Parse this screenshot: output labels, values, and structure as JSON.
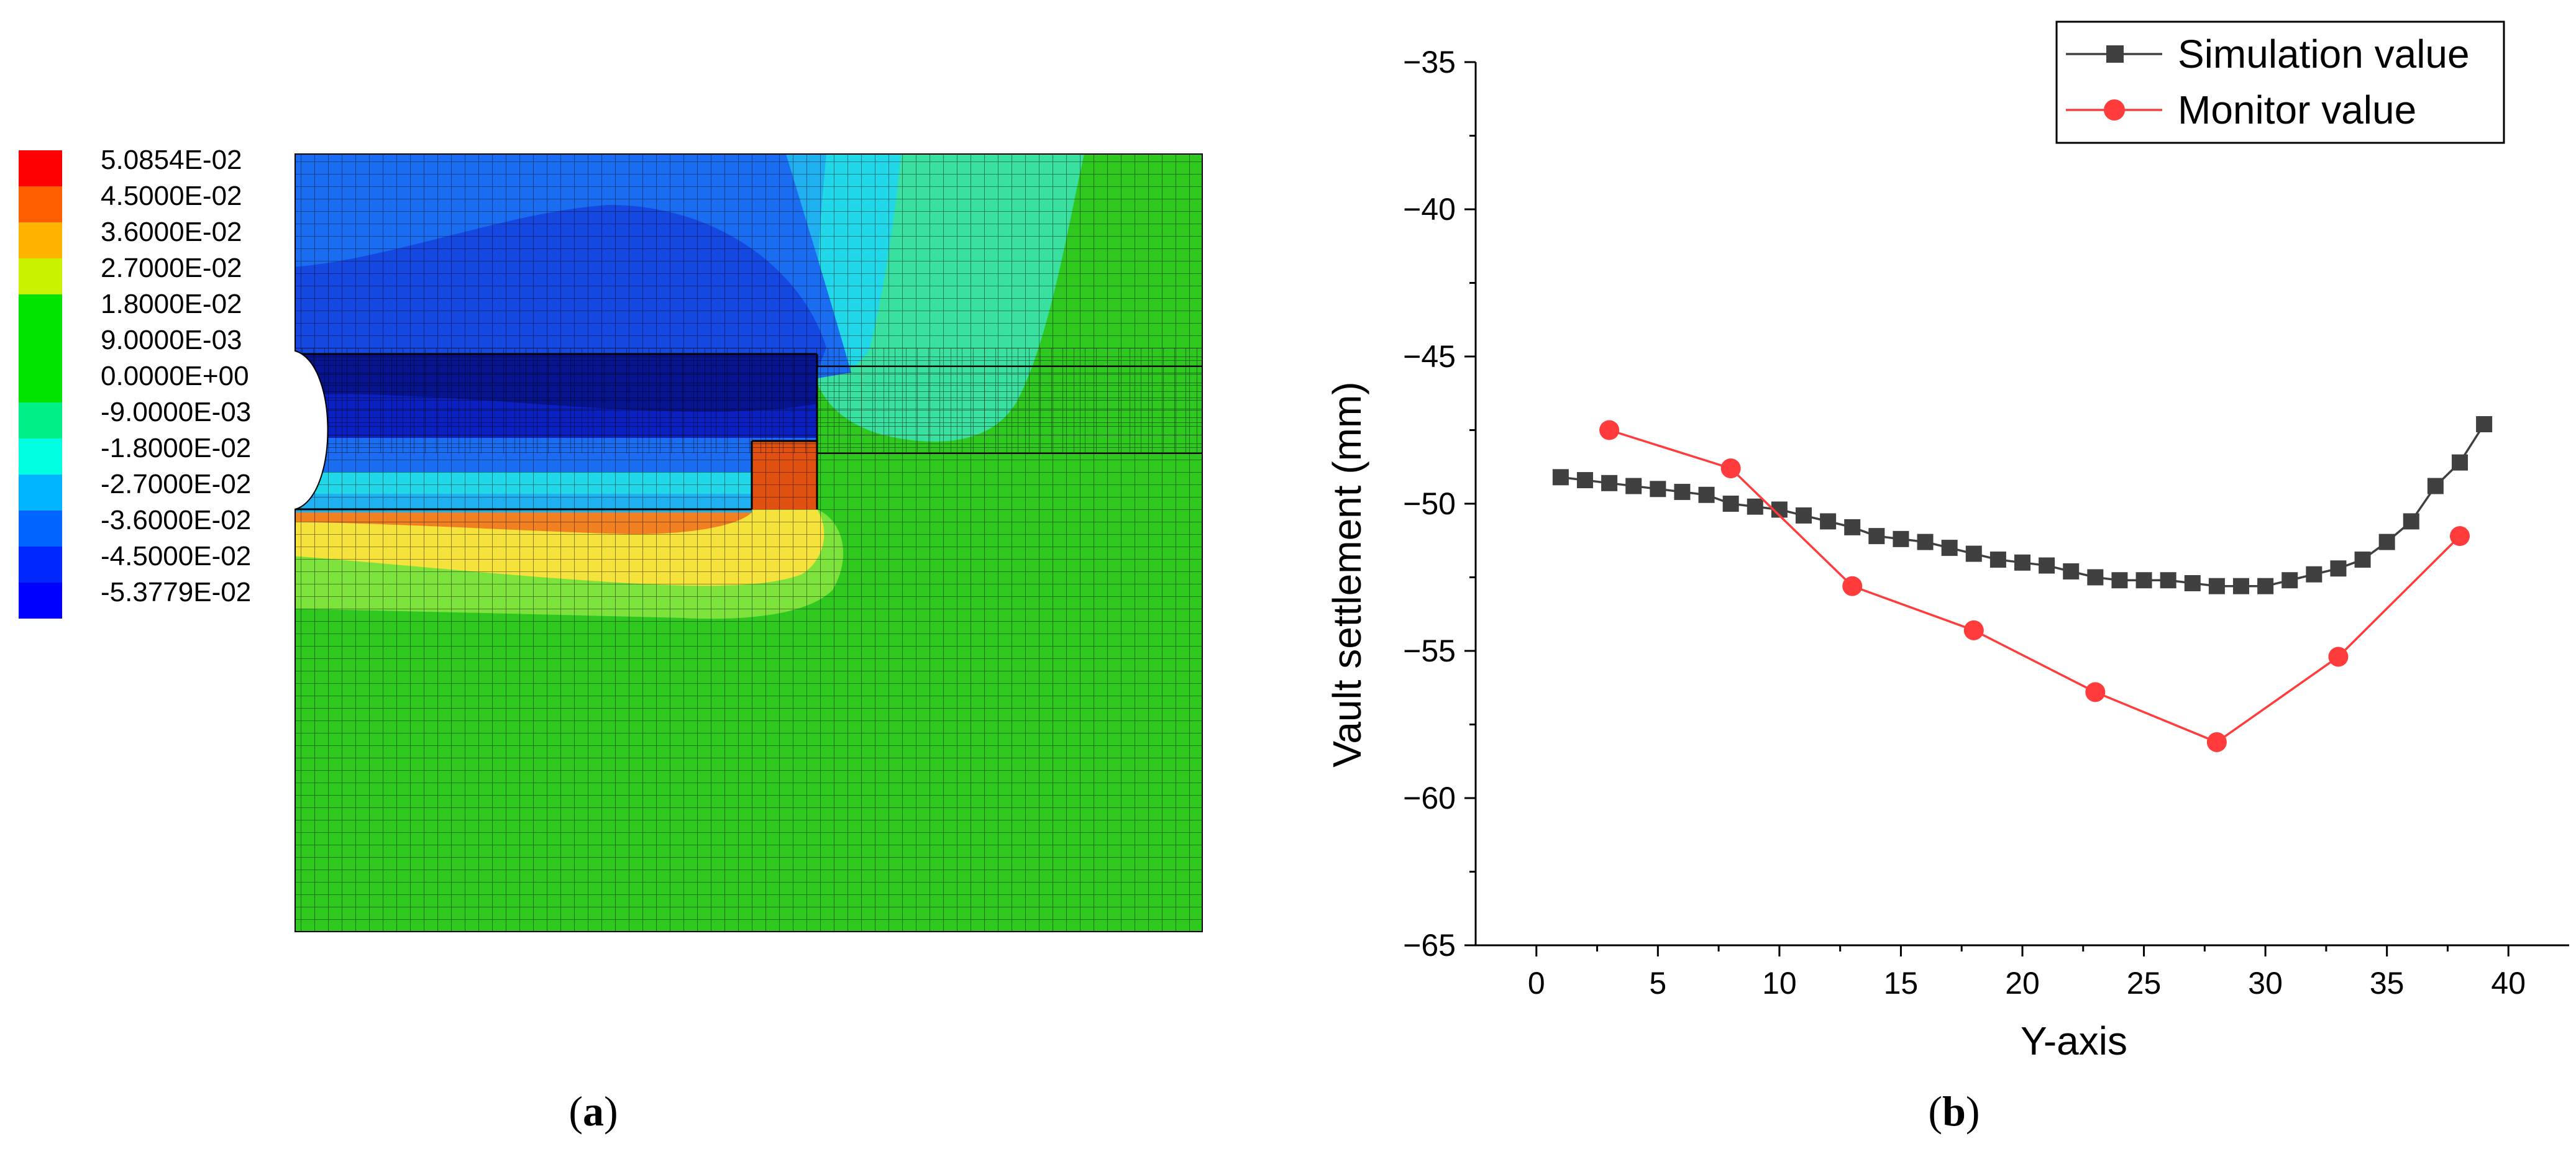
{
  "panel_a": {
    "label": "(a)",
    "legend": {
      "values": [
        "5.0854E-02",
        "4.5000E-02",
        "3.6000E-02",
        "2.7000E-02",
        "1.8000E-02",
        "9.0000E-03",
        "0.0000E+00",
        "-9.0000E-03",
        "-1.8000E-02",
        "-2.7000E-02",
        "-3.6000E-02",
        "-4.5000E-02",
        "-5.3779E-02"
      ],
      "colors": [
        "#ff0000",
        "#ff5f00",
        "#ffb300",
        "#c8f200",
        "#00e400",
        "#00e400",
        "#00e400",
        "#00ee86",
        "#00ffe0",
        "#00b4ff",
        "#0064ff",
        "#0028ff",
        "#0000ff"
      ]
    },
    "colors": {
      "green": "#2ec81e",
      "light_green": "#7ee23c",
      "yellow": "#f5e23a",
      "orange": "#f08020",
      "dark_orange": "#e05010",
      "cyan_green": "#3ae0a0",
      "cyan": "#20d8e8",
      "light_blue": "#1fb0f0",
      "blue": "#1a6cf0",
      "mid_blue": "#1448e0",
      "dark_blue": "#0a20c0",
      "navy": "#061490"
    }
  },
  "panel_b": {
    "label": "(b)",
    "chart_data": {
      "type": "line",
      "xlabel": "Y-axis",
      "ylabel": "Vault settlement (mm)",
      "xlim": [
        -2.5,
        42.5
      ],
      "ylim": [
        -65,
        -35
      ],
      "xticks": [
        "0",
        "5",
        "10",
        "15",
        "20",
        "25",
        "30",
        "35",
        "40"
      ],
      "yticks": [
        "−35",
        "−40",
        "−45",
        "−50",
        "−55",
        "−60",
        "−65"
      ],
      "legend_position": "top-right",
      "series": [
        {
          "name": "Simulation value",
          "color": "#404040",
          "marker": "square",
          "x": [
            1,
            2,
            3,
            4,
            5,
            6,
            7,
            8,
            9,
            10,
            11,
            12,
            13,
            14,
            15,
            16,
            17,
            18,
            19,
            20,
            21,
            22,
            23,
            24,
            25,
            26,
            27,
            28,
            29,
            30,
            31,
            32,
            33,
            34,
            35,
            36,
            37,
            38,
            39
          ],
          "y": [
            -49.1,
            -49.2,
            -49.3,
            -49.4,
            -49.5,
            -49.6,
            -49.7,
            -50.0,
            -50.1,
            -50.2,
            -50.4,
            -50.6,
            -50.8,
            -51.1,
            -51.2,
            -51.3,
            -51.5,
            -51.7,
            -51.9,
            -52.0,
            -52.1,
            -52.3,
            -52.5,
            -52.6,
            -52.6,
            -52.6,
            -52.7,
            -52.8,
            -52.8,
            -52.8,
            -52.6,
            -52.4,
            -52.2,
            -51.9,
            -51.3,
            -50.6,
            -49.4,
            -48.6,
            -47.3
          ]
        },
        {
          "name": "Monitor value",
          "color": "#ff3b3b",
          "marker": "circle",
          "x": [
            3,
            8,
            13,
            18,
            23,
            28,
            33,
            38
          ],
          "y": [
            -47.5,
            -48.8,
            -52.8,
            -54.3,
            -56.4,
            -58.1,
            -55.2,
            -51.1
          ]
        }
      ]
    }
  }
}
